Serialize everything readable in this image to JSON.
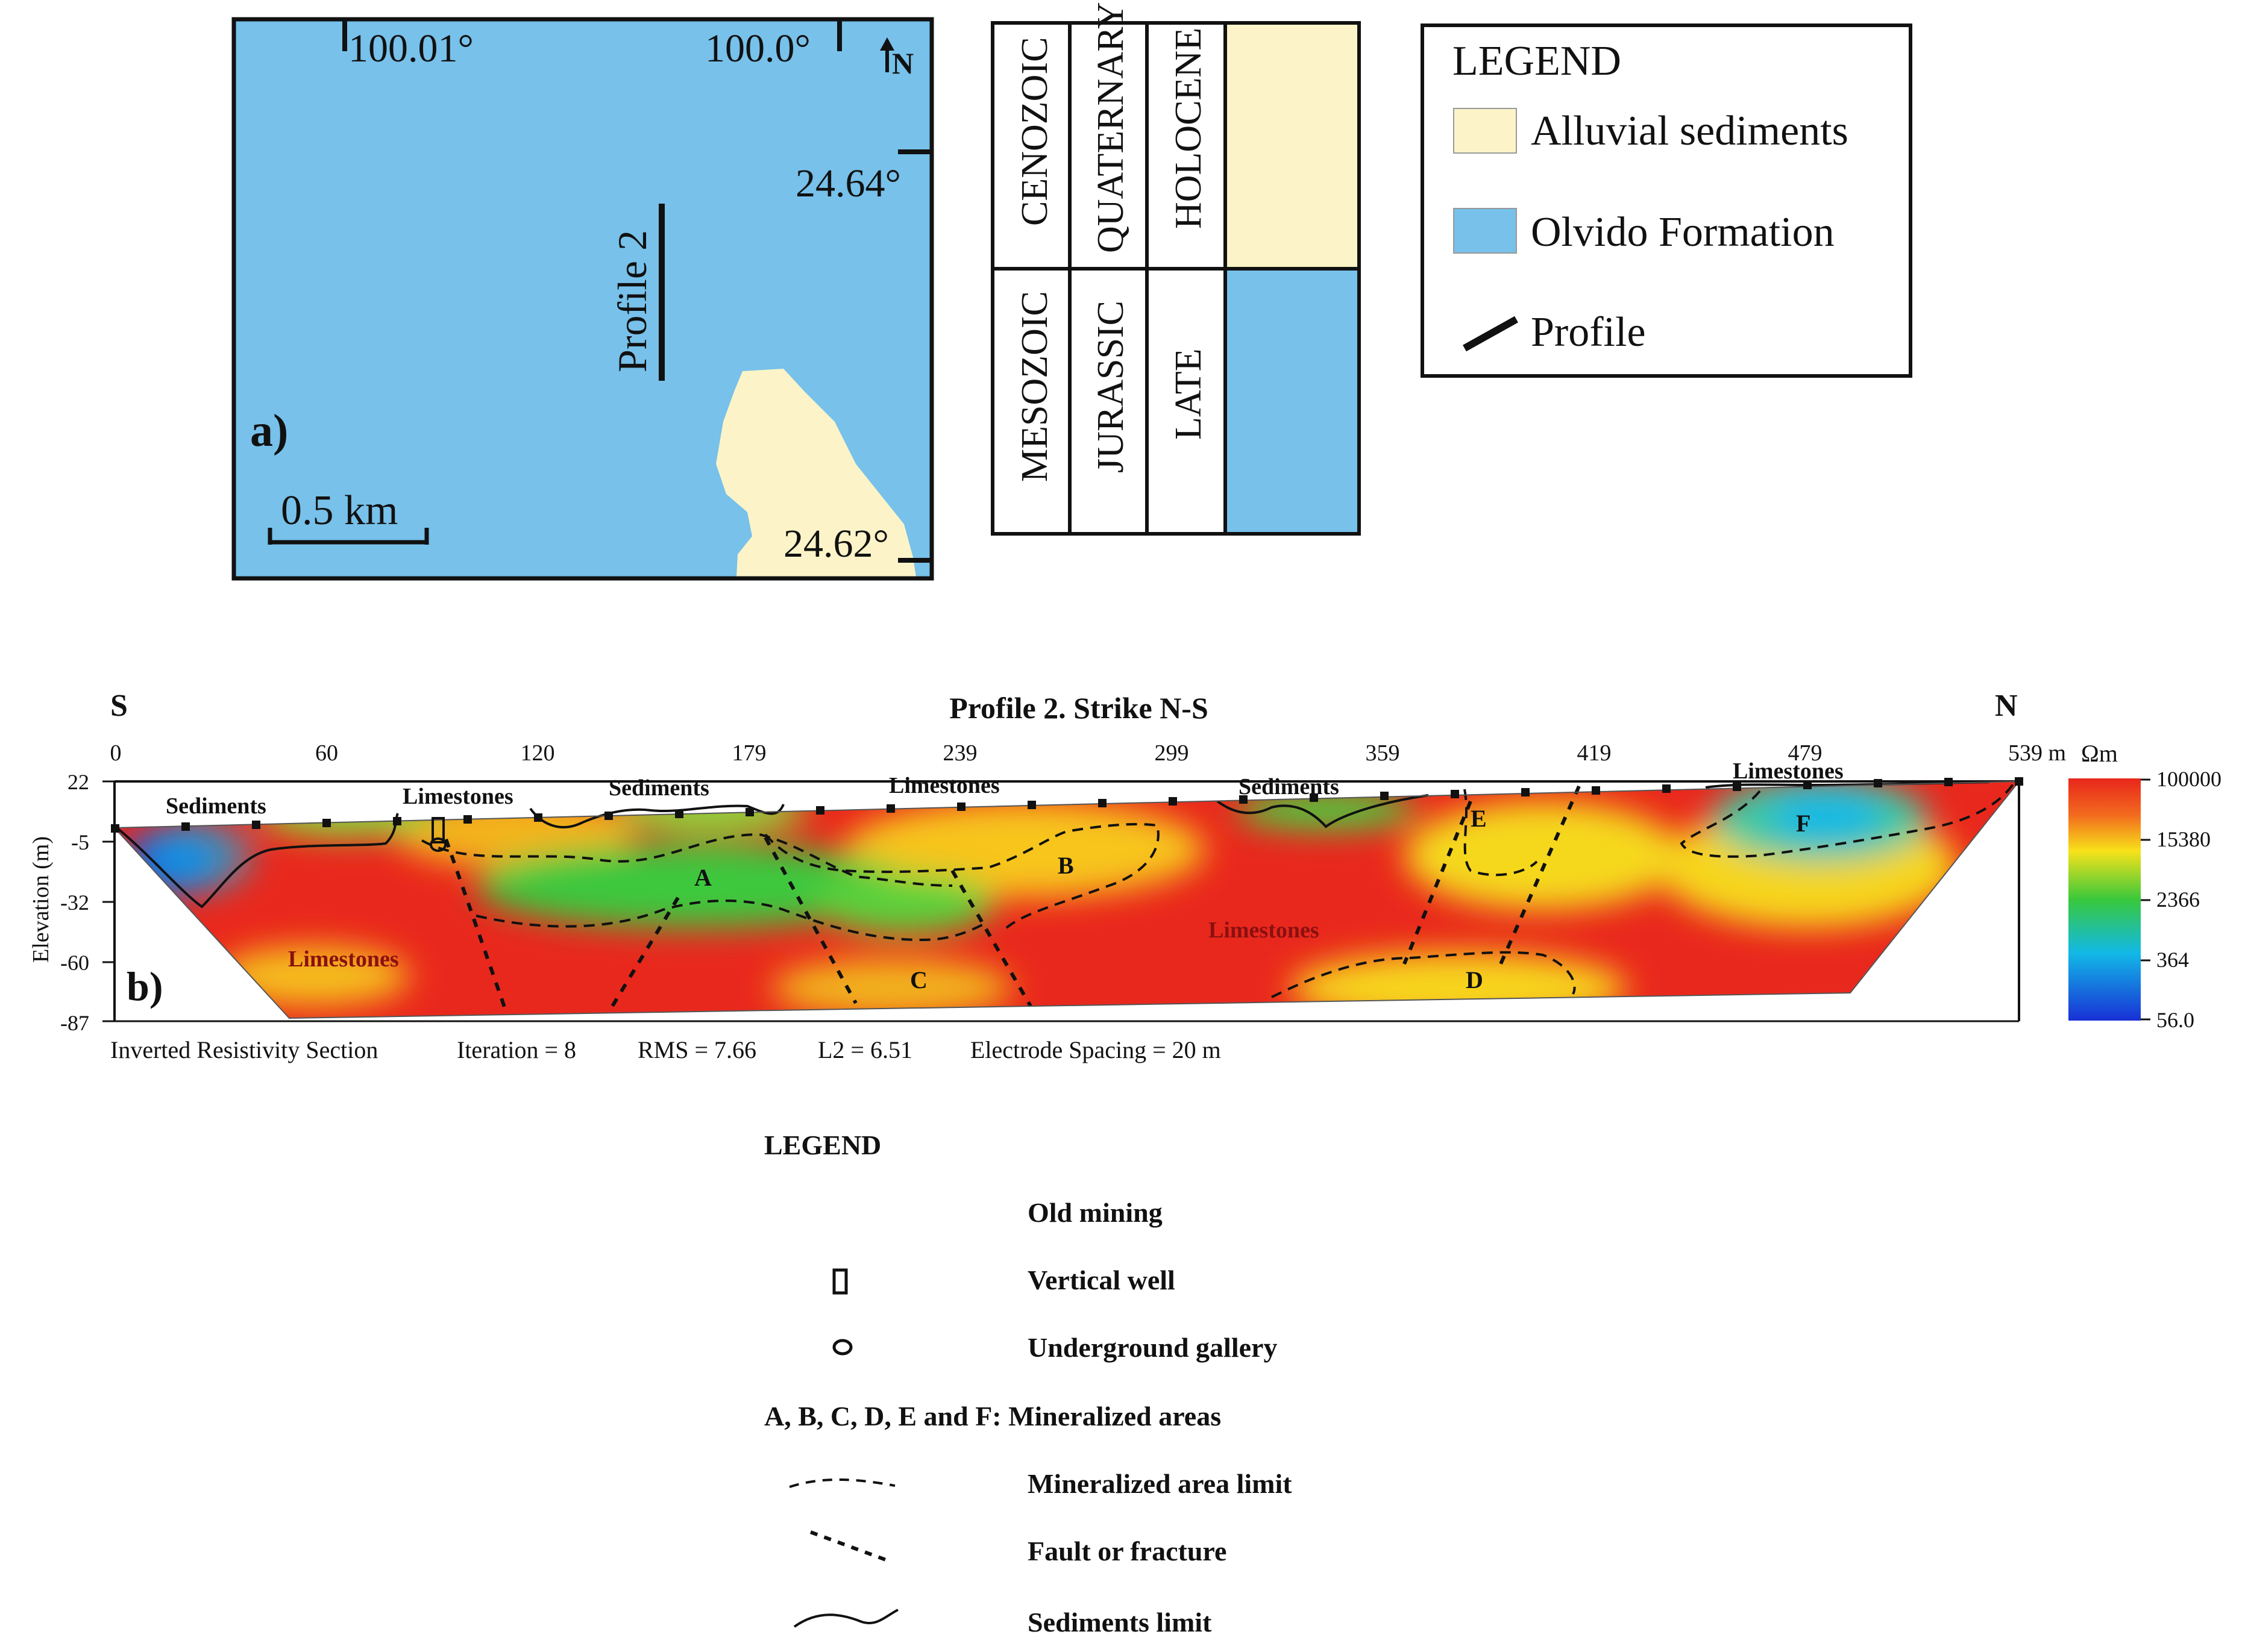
{
  "colors": {
    "sea_blue": "#77c1ea",
    "sediment_yellow": "#fcf4c8",
    "line_black": "#111111",
    "scale_high": "#e8261c",
    "scale_mid_high": "#f7e21a",
    "scale_mid": "#39c83c",
    "scale_mid_low": "#12b9e6",
    "scale_low": "#1930d6"
  },
  "map": {
    "panel_label": "a)",
    "lon_left": "100.01°",
    "lon_right": "100.0°",
    "lat_top": "24.64°",
    "lat_bottom": "24.62°",
    "north_label": "N",
    "profile_label": "Profile 2",
    "scale_label": "0.5 km"
  },
  "stratigraphy": {
    "rows": [
      {
        "era": "CENOZOIC",
        "period": "QUATERNARY",
        "epoch": "HOLOCENE",
        "unit_color": "#fcf4c8"
      },
      {
        "era": "MESOZOIC",
        "period": "JURASSIC",
        "epoch": "LATE",
        "unit_color": "#77c1ea"
      }
    ]
  },
  "map_legend": {
    "title": "LEGEND",
    "items": [
      {
        "label": "Alluvial sediments",
        "symbol": "yellow-swatch"
      },
      {
        "label": "Olvido Formation",
        "symbol": "blue-swatch"
      },
      {
        "label": "Profile",
        "symbol": "black-line"
      }
    ]
  },
  "section": {
    "panel_label": "b)",
    "title": "Profile 2. Strike N-S",
    "left_end": "S",
    "right_end": "N",
    "x_ticks": [
      "0",
      "60",
      "120",
      "179",
      "239",
      "299",
      "359",
      "419",
      "479",
      "539 m"
    ],
    "y_ticks": [
      "22",
      "-5",
      "-32",
      "-60",
      "-87"
    ],
    "y_axis_label": "Elevation (m)",
    "unit_label": "Ωm",
    "color_scale": [
      "100000",
      "15380",
      "2366",
      "364",
      "56.0"
    ],
    "top_labels": [
      "Sediments",
      "Limestones",
      "Sediments",
      "Limestones",
      "Sediments",
      "Limestones"
    ],
    "body_labels": [
      "Limestones",
      "Limestones"
    ],
    "zones": [
      "A",
      "B",
      "C",
      "D",
      "E",
      "F"
    ],
    "footer": {
      "name": "Inverted Resistivity Section",
      "iteration": "Iteration = 8",
      "rms": "RMS = 7.66",
      "l2": "L2 = 6.51",
      "spacing": "Electrode Spacing = 20 m"
    }
  },
  "section_legend": {
    "title": "LEGEND",
    "items": [
      {
        "label": "Old mining",
        "symbol": "none"
      },
      {
        "label": "Vertical well",
        "symbol": "well-icon"
      },
      {
        "label": "Underground gallery",
        "symbol": "gallery-icon"
      },
      {
        "label": "A, B, C, D, E and F: Mineralized areas",
        "symbol": "none"
      },
      {
        "label": "Mineralized area limit",
        "symbol": "dashed-arc"
      },
      {
        "label": "Fault or fracture",
        "symbol": "dotted-diagonal"
      },
      {
        "label": "Sediments limit",
        "symbol": "wavy-line"
      }
    ]
  }
}
